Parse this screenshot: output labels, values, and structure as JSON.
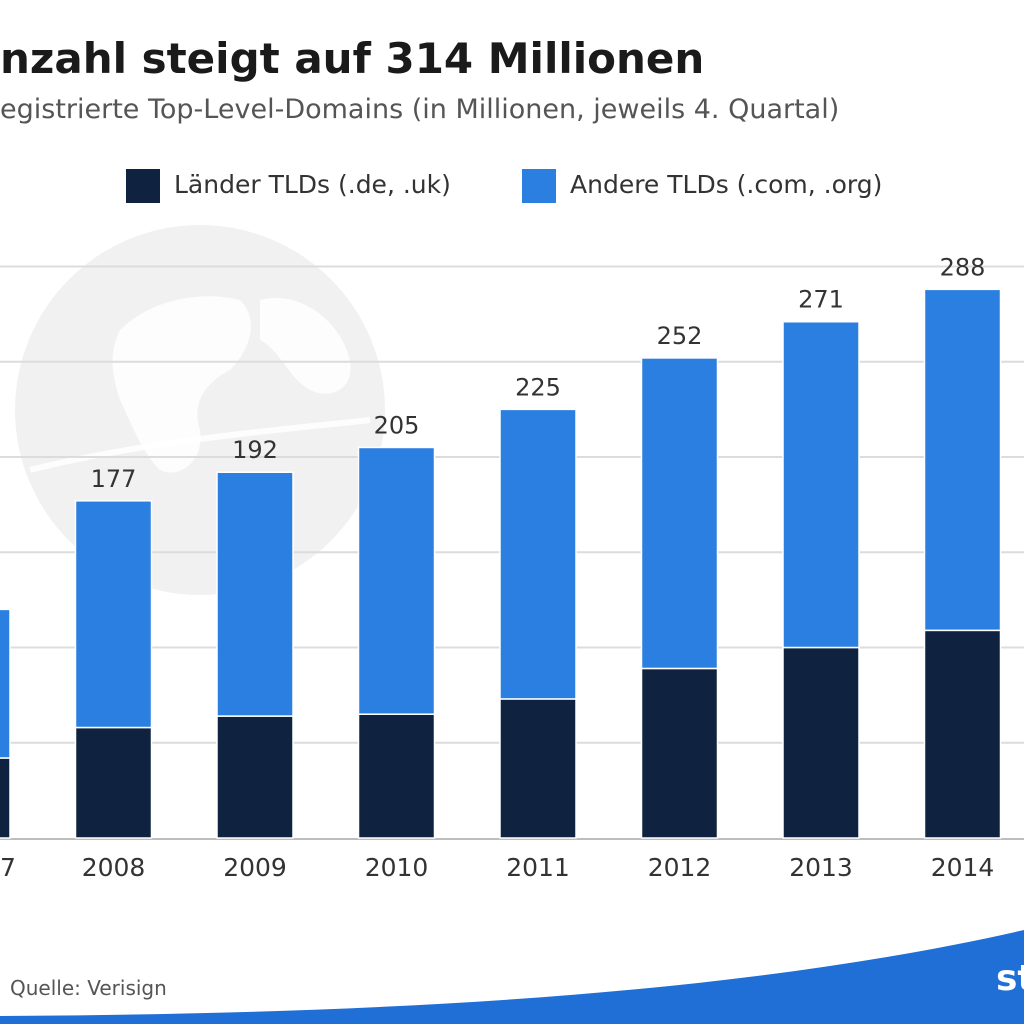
{
  "header": {
    "title": "nzahl steigt auf 314 Millionen",
    "subtitle": "egistrierte Top-Level-Domains (in Millionen, jeweils 4. Quartal)"
  },
  "legend": {
    "items": [
      {
        "label": "Länder TLDs (.de, .uk)",
        "color": "#0f2240"
      },
      {
        "label": "Andere TLDs (.com, .org)",
        "color": "#2b7fe0"
      }
    ]
  },
  "source": "Quelle: Verisign",
  "brand": "st",
  "colors": {
    "dark": "#0f2240",
    "blue": "#2b7fe0",
    "grid": "#dcdcdc",
    "footer": "#1f6fd6"
  },
  "chart_data": {
    "type": "bar",
    "stacked": true,
    "categories": [
      "7",
      "2008",
      "2009",
      "2010",
      "2011",
      "2012",
      "2013",
      "2014"
    ],
    "series": [
      {
        "name": "Länder TLDs (.de, .uk)",
        "values": [
          42,
          58,
          64,
          65,
          73,
          89,
          100,
          109
        ]
      },
      {
        "name": "Andere TLDs (.com, .org)",
        "values": [
          78,
          119,
          128,
          140,
          152,
          163,
          171,
          179
        ]
      }
    ],
    "totals": [
      null,
      177,
      192,
      205,
      225,
      252,
      271,
      288
    ],
    "ylim": [
      0,
      310
    ],
    "grid": true
  }
}
